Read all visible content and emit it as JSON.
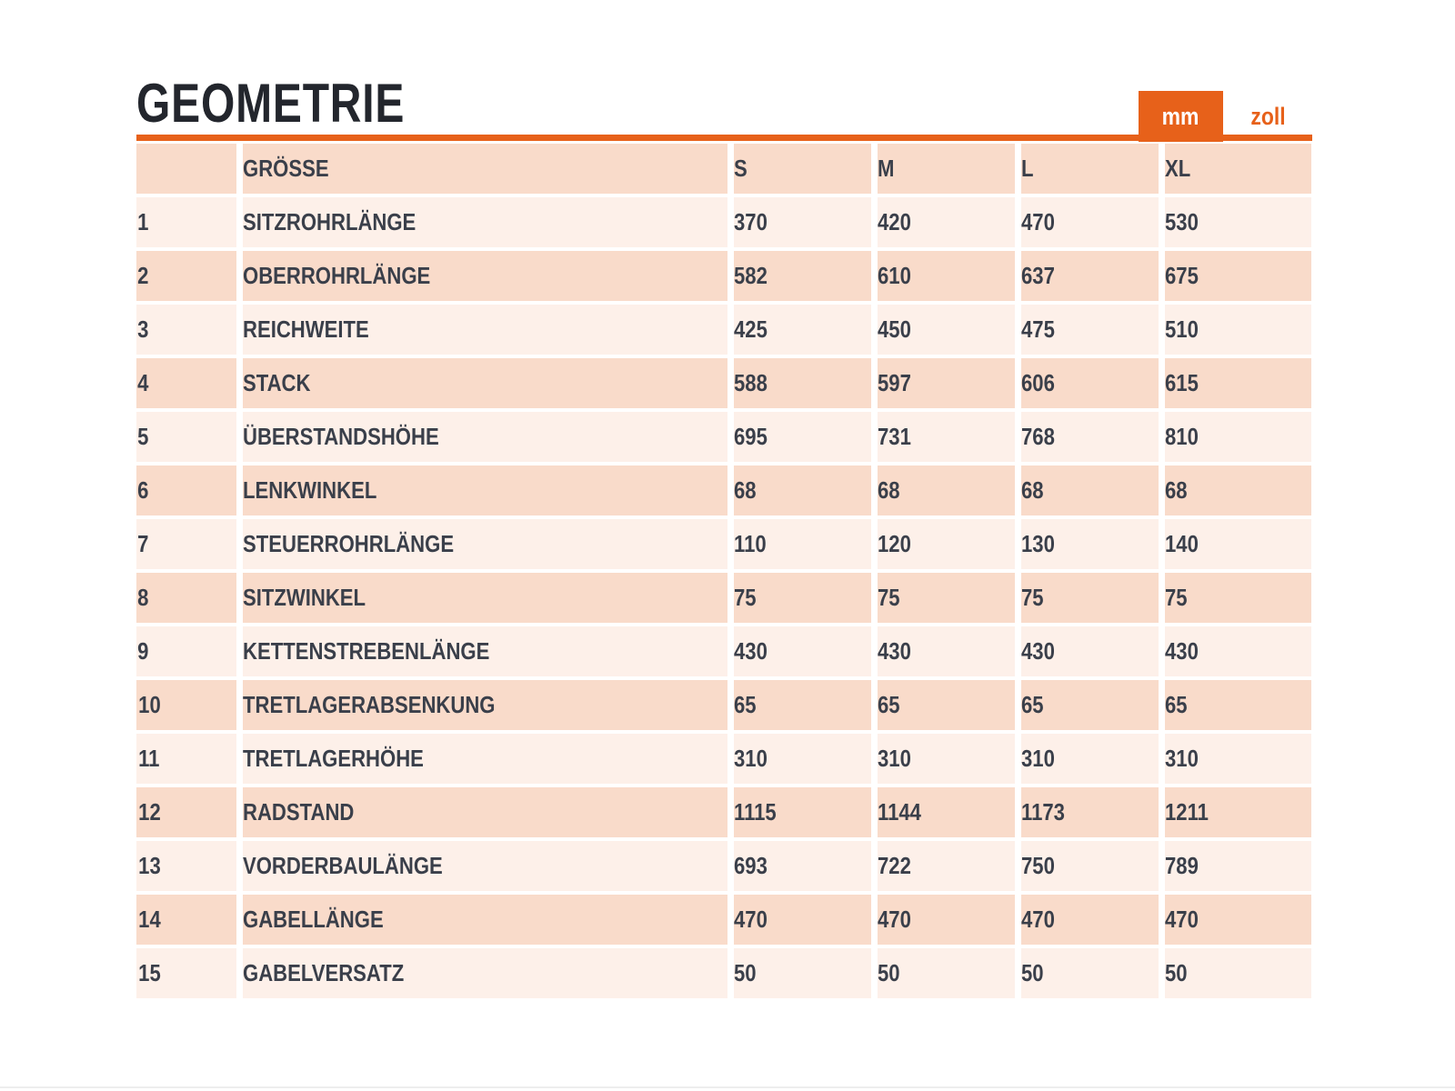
{
  "page": {
    "title": "GEOMETRIE"
  },
  "unit_tabs": [
    {
      "label": "mm",
      "active": true
    },
    {
      "label": "zoll",
      "active": false
    }
  ],
  "colors": {
    "accent_orange": "#E7611A",
    "row_light": "#FDF0E9",
    "row_dark": "#F9DBCA",
    "text_dark": "#3A3F4A",
    "active_tab_text": "#FFFFFF"
  },
  "table": {
    "headers": {
      "index": "",
      "label": "GRÖSSE",
      "sizes": [
        "S",
        "M",
        "L",
        "XL"
      ]
    },
    "rows": [
      {
        "num": "1",
        "label": "SITZROHRLÄNGE",
        "values": [
          "370",
          "420",
          "470",
          "530"
        ]
      },
      {
        "num": "2",
        "label": "OBERROHRLÄNGE",
        "values": [
          "582",
          "610",
          "637",
          "675"
        ]
      },
      {
        "num": "3",
        "label": "REICHWEITE",
        "values": [
          "425",
          "450",
          "475",
          "510"
        ]
      },
      {
        "num": "4",
        "label": "STACK",
        "values": [
          "588",
          "597",
          "606",
          "615"
        ]
      },
      {
        "num": "5",
        "label": "ÜBERSTANDSHÖHE",
        "values": [
          "695",
          "731",
          "768",
          "810"
        ]
      },
      {
        "num": "6",
        "label": "LENKWINKEL",
        "values": [
          "68",
          "68",
          "68",
          "68"
        ]
      },
      {
        "num": "7",
        "label": "STEUERROHRLÄNGE",
        "values": [
          "110",
          "120",
          "130",
          "140"
        ]
      },
      {
        "num": "8",
        "label": "SITZWINKEL",
        "values": [
          "75",
          "75",
          "75",
          "75"
        ]
      },
      {
        "num": "9",
        "label": "KETTENSTREBENLÄNGE",
        "values": [
          "430",
          "430",
          "430",
          "430"
        ]
      },
      {
        "num": "10",
        "label": "TRETLAGERABSENKUNG",
        "values": [
          "65",
          "65",
          "65",
          "65"
        ]
      },
      {
        "num": "11",
        "label": "TRETLAGERHÖHE",
        "values": [
          "310",
          "310",
          "310",
          "310"
        ]
      },
      {
        "num": "12",
        "label": "RADSTAND",
        "values": [
          "1115",
          "1144",
          "1173",
          "1211"
        ]
      },
      {
        "num": "13",
        "label": "VORDERBAULÄNGE",
        "values": [
          "693",
          "722",
          "750",
          "789"
        ]
      },
      {
        "num": "14",
        "label": "GABELLÄNGE",
        "values": [
          "470",
          "470",
          "470",
          "470"
        ]
      },
      {
        "num": "15",
        "label": "GABELVERSATZ",
        "values": [
          "50",
          "50",
          "50",
          "50"
        ]
      }
    ]
  }
}
